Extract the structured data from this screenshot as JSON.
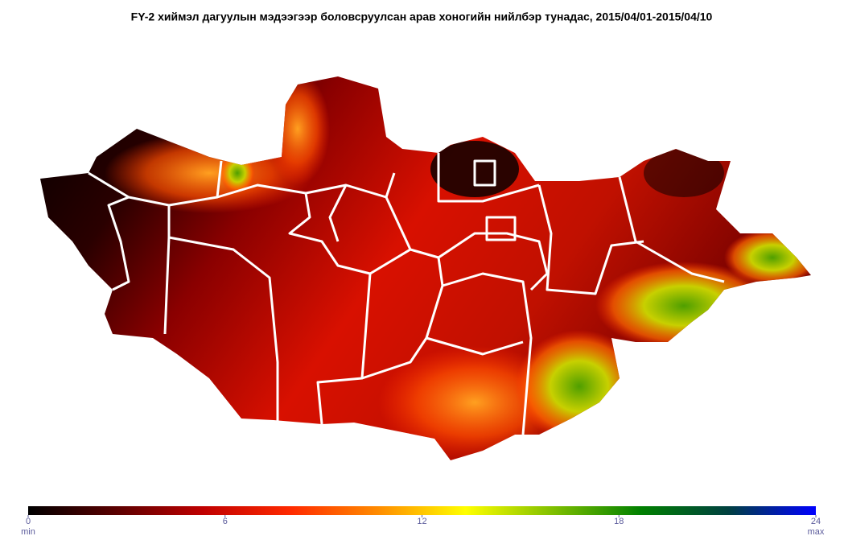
{
  "title": "FY-2 хиймэл дагуулын мэдээгээр боловсруулсан арав хоногийн нийлбэр тунадас, 2015/04/01-2015/04/10",
  "colorbar": {
    "lim": [
      0,
      24
    ],
    "ticks": [
      0,
      6,
      12,
      18,
      24
    ],
    "min_label": "min",
    "max_label": "max",
    "colors": [
      "#000000",
      "#5a0000",
      "#c00000",
      "#ff2a00",
      "#ff8c00",
      "#ffff00",
      "#7fbf00",
      "#008000",
      "#004040",
      "#0000ff"
    ]
  }
}
